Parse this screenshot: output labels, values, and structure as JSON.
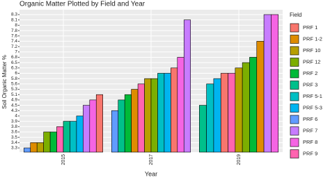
{
  "chart_data": {
    "type": "bar",
    "title": "Organic Matter Plotted by Field and Year",
    "x_label": "Year",
    "y_label": "Soil Organic Matter %",
    "legend_title": "Field",
    "categories": [
      "2015",
      "2017",
      "2019"
    ],
    "yticks": [
      3.3,
      3.4,
      3.5,
      3.6,
      3.8,
      3.9,
      4,
      4.3,
      4.5,
      4.9,
      5.1,
      5.3,
      5.6,
      5.8,
      6,
      6.3,
      6.5,
      6.8,
      7,
      7.2,
      7.4,
      7.6,
      7.8,
      8,
      8.1,
      8.3
    ],
    "series": [
      {
        "name": "PRF 1",
        "color": "#F8766D",
        "values": [
          5.1,
          6.3,
          6
        ]
      },
      {
        "name": "PRF 1-2",
        "color": "#DE8C00",
        "values": [
          3.4,
          5.3,
          7.4
        ]
      },
      {
        "name": "PRF 10",
        "color": "#B79F00",
        "values": [
          3.4,
          5.8,
          6.3
        ]
      },
      {
        "name": "PRF 12",
        "color": "#7CAE00",
        "values": [
          3.6,
          5.8,
          6.5
        ]
      },
      {
        "name": "PRF 2",
        "color": "#00BA38",
        "values": [
          3.6,
          5.1,
          6.8
        ]
      },
      {
        "name": "PRF 3",
        "color": "#00C08B",
        "values": [
          3.9,
          4.9,
          4.5
        ]
      },
      {
        "name": "PRF 5-1",
        "color": "#00BFC4",
        "values": [
          3.9,
          6,
          5.6
        ]
      },
      {
        "name": "PRF 5-3",
        "color": "#00B4F0",
        "values": [
          4,
          6,
          5.8
        ]
      },
      {
        "name": "PRF 6",
        "color": "#619CFF",
        "values": [
          3.3,
          4.3,
          null
        ]
      },
      {
        "name": "PRF 7",
        "color": "#C77CFF",
        "values": [
          4.5,
          8.1,
          8.3
        ]
      },
      {
        "name": "PRF 8",
        "color": "#F564E3",
        "values": [
          4.9,
          6.8,
          8.3
        ]
      },
      {
        "name": "PRF 9",
        "color": "#FF64B0",
        "values": [
          3.8,
          5.6,
          6
        ]
      }
    ]
  }
}
